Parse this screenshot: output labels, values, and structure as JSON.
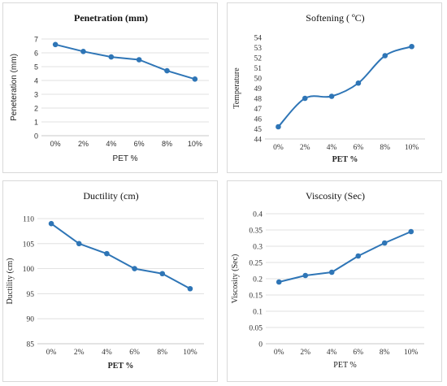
{
  "accent_color": "#2E75B6",
  "chart_data": [
    {
      "type": "line",
      "title": "Penetration (mm)",
      "xlabel": "PET %",
      "ylabel": "Peneteration (mm)",
      "categories": [
        "0%",
        "2%",
        "4%",
        "6%",
        "8%",
        "10%"
      ],
      "values": [
        6.6,
        6.1,
        5.7,
        5.5,
        4.7,
        4.1
      ],
      "ylim": [
        0,
        7
      ],
      "yticks": [
        "0",
        "1",
        "2",
        "3",
        "4",
        "5",
        "6",
        "7"
      ],
      "grid": "horizontal"
    },
    {
      "type": "line",
      "title": "Softening ( ºC)",
      "xlabel": "PET %",
      "ylabel": "Temperature",
      "categories": [
        "0%",
        "2%",
        "4%",
        "6%",
        "8%",
        "10%"
      ],
      "values": [
        45.2,
        48.0,
        48.2,
        49.5,
        52.2,
        53.1
      ],
      "ylim": [
        44,
        54
      ],
      "yticks": [
        "44",
        "45",
        "46",
        "47",
        "48",
        "49",
        "50",
        "51",
        "52",
        "53",
        "54"
      ],
      "smooth": true,
      "grid": "none"
    },
    {
      "type": "line",
      "title": "Ductility (cm)",
      "xlabel": "PET %",
      "ylabel": "Ductility (cm)",
      "categories": [
        "0%",
        "2%",
        "4%",
        "6%",
        "8%",
        "10%"
      ],
      "values": [
        109,
        105,
        103,
        100,
        99,
        96
      ],
      "ylim": [
        85,
        110
      ],
      "yticks": [
        "85",
        "90",
        "95",
        "100",
        "105",
        "110"
      ],
      "grid": "horizontal"
    },
    {
      "type": "line",
      "title": "Viscosity (Sec)",
      "xlabel": "PET %",
      "ylabel": "Viscosity (Sec)",
      "categories": [
        "0%",
        "2%",
        "4%",
        "6%",
        "8%",
        "10%"
      ],
      "values": [
        0.19,
        0.21,
        0.22,
        0.27,
        0.31,
        0.345
      ],
      "ylim": [
        0,
        0.4
      ],
      "yticks": [
        "0",
        "0.05",
        "0.1",
        "0.15",
        "0.2",
        "0.25",
        "0.3",
        "0.35",
        "0.4"
      ],
      "grid": "horizontal"
    }
  ]
}
